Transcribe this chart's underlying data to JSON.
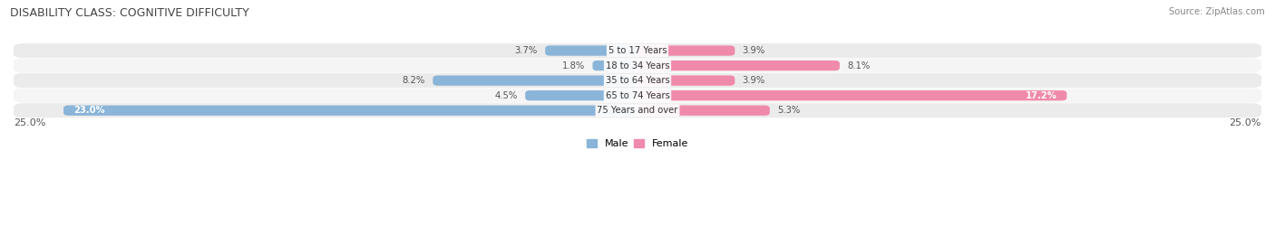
{
  "title": "DISABILITY CLASS: COGNITIVE DIFFICULTY",
  "source": "Source: ZipAtlas.com",
  "categories": [
    "5 to 17 Years",
    "18 to 34 Years",
    "35 to 64 Years",
    "65 to 74 Years",
    "75 Years and over"
  ],
  "male_values": [
    3.7,
    1.8,
    8.2,
    4.5,
    23.0
  ],
  "female_values": [
    3.9,
    8.1,
    3.9,
    17.2,
    5.3
  ],
  "male_color": "#8ab4d8",
  "female_color": "#f08aaa",
  "male_color_light": "#aecce8",
  "female_color_light": "#f5b8cc",
  "row_bg_color": "#e8e8e8",
  "max_val": 25.0,
  "legend_male": "Male",
  "legend_female": "Female",
  "inside_label_threshold": 10.0
}
